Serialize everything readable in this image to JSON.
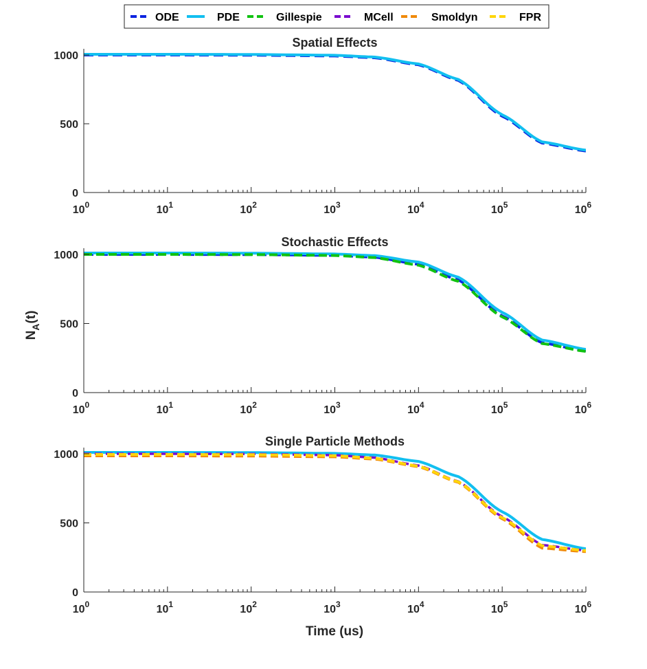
{
  "colors": {
    "ODE": "#0b24e0",
    "PDE": "#12bff0",
    "Gillespie": "#11c211",
    "MCell": "#7a0bcf",
    "Smoldyn": "#f08a0a",
    "FPR": "#ffd60a"
  },
  "legend": {
    "entries": [
      {
        "name": "ODE",
        "dash": true
      },
      {
        "name": "PDE",
        "dash": false
      },
      {
        "name": "Gillespie",
        "dash": true
      },
      {
        "name": "MCell",
        "dash": true
      },
      {
        "name": "Smoldyn",
        "dash": true
      },
      {
        "name": "FPR",
        "dash": true
      }
    ],
    "placement": "top-center"
  },
  "axes": {
    "ylabel_main": "N",
    "ylabel_sub": "A",
    "ylabel_tail": "(t)",
    "xlabel": "Time (us)",
    "tick_base": "10"
  },
  "chart_data": [
    {
      "type": "line",
      "title": "Spatial Effects",
      "xscale": "log",
      "xlim": [
        1,
        1000000
      ],
      "ylim": [
        0,
        1000
      ],
      "x_ticks": [
        "0",
        "1",
        "2",
        "3",
        "4",
        "5",
        "6"
      ],
      "y_ticks": [
        0,
        500,
        1000
      ],
      "x": [
        1,
        10,
        100,
        1000,
        3000,
        10000,
        30000,
        100000,
        300000,
        1000000
      ],
      "series": [
        {
          "name": "ODE",
          "values": [
            1000,
            1000,
            999,
            993,
            980,
            929,
            815,
            555,
            360,
            302
          ]
        },
        {
          "name": "PDE",
          "values": [
            1005,
            1005,
            1004,
            998,
            985,
            935,
            822,
            565,
            368,
            308
          ]
        }
      ]
    },
    {
      "type": "line",
      "title": "Stochastic Effects",
      "xscale": "log",
      "xlim": [
        1,
        1000000
      ],
      "ylim": [
        0,
        1000
      ],
      "x_ticks": [
        "0",
        "1",
        "2",
        "3",
        "4",
        "5",
        "6"
      ],
      "y_ticks": [
        0,
        500,
        1000
      ],
      "x": [
        1,
        10,
        100,
        1000,
        3000,
        10000,
        30000,
        100000,
        300000,
        1000000
      ],
      "series": [
        {
          "name": "ODE",
          "values": [
            1000,
            1000,
            999,
            993,
            980,
            929,
            815,
            555,
            360,
            302
          ]
        },
        {
          "name": "PDE",
          "values": [
            1010,
            1010,
            1009,
            1003,
            991,
            945,
            835,
            580,
            380,
            313
          ]
        },
        {
          "name": "Gillespie",
          "values": [
            1000,
            1000,
            999,
            992,
            977,
            922,
            805,
            548,
            355,
            298
          ]
        }
      ]
    },
    {
      "type": "line",
      "title": "Single Particle Methods",
      "xscale": "log",
      "xlim": [
        1,
        1000000
      ],
      "ylim": [
        0,
        1000
      ],
      "x_ticks": [
        "0",
        "1",
        "2",
        "3",
        "4",
        "5",
        "6"
      ],
      "y_ticks": [
        0,
        500,
        1000
      ],
      "x": [
        1,
        10,
        100,
        1000,
        3000,
        10000,
        30000,
        100000,
        300000,
        1000000
      ],
      "series": [
        {
          "name": "PDE",
          "values": [
            1010,
            1010,
            1009,
            1003,
            991,
            945,
            835,
            580,
            380,
            313
          ]
        },
        {
          "name": "MCell",
          "values": [
            1000,
            1000,
            999,
            990,
            972,
            915,
            800,
            545,
            340,
            300
          ]
        },
        {
          "name": "Smoldyn",
          "values": [
            985,
            985,
            984,
            978,
            962,
            907,
            793,
            530,
            318,
            292
          ]
        },
        {
          "name": "FPR",
          "values": [
            995,
            995,
            994,
            986,
            968,
            911,
            797,
            538,
            335,
            300
          ]
        }
      ]
    }
  ]
}
